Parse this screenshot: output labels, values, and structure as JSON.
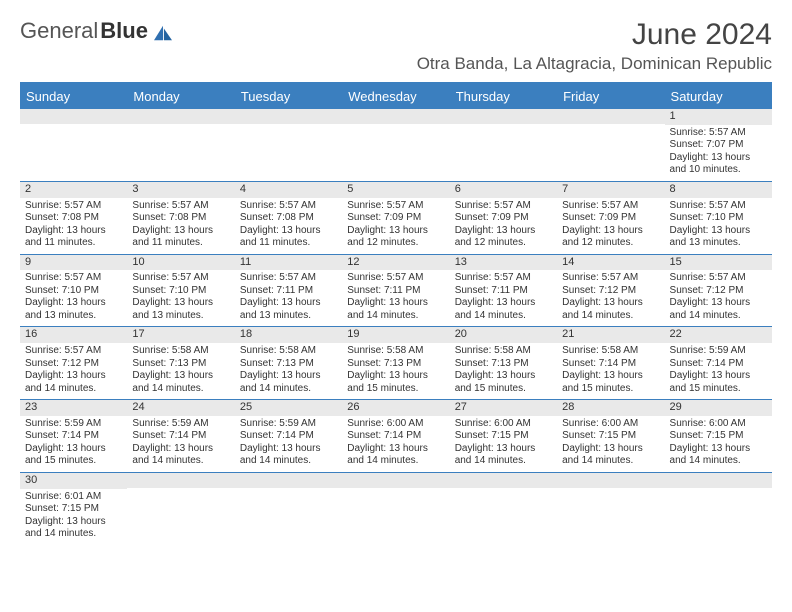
{
  "logo": {
    "part1": "General",
    "part2": "Blue"
  },
  "title": "June 2024",
  "location": "Otra Banda, La Altagracia, Dominican Republic",
  "colors": {
    "header_bg": "#3b7fbf",
    "header_text": "#ffffff",
    "daynum_bg": "#e9e9e9",
    "border": "#3b7fbf",
    "text": "#333333",
    "logo_blue": "#2f6fb0"
  },
  "day_names": [
    "Sunday",
    "Monday",
    "Tuesday",
    "Wednesday",
    "Thursday",
    "Friday",
    "Saturday"
  ],
  "weeks": [
    [
      {
        "empty": true
      },
      {
        "empty": true
      },
      {
        "empty": true
      },
      {
        "empty": true
      },
      {
        "empty": true
      },
      {
        "empty": true
      },
      {
        "n": "1",
        "sunrise": "Sunrise: 5:57 AM",
        "sunset": "Sunset: 7:07 PM",
        "daylight1": "Daylight: 13 hours",
        "daylight2": "and 10 minutes."
      }
    ],
    [
      {
        "n": "2",
        "sunrise": "Sunrise: 5:57 AM",
        "sunset": "Sunset: 7:08 PM",
        "daylight1": "Daylight: 13 hours",
        "daylight2": "and 11 minutes."
      },
      {
        "n": "3",
        "sunrise": "Sunrise: 5:57 AM",
        "sunset": "Sunset: 7:08 PM",
        "daylight1": "Daylight: 13 hours",
        "daylight2": "and 11 minutes."
      },
      {
        "n": "4",
        "sunrise": "Sunrise: 5:57 AM",
        "sunset": "Sunset: 7:08 PM",
        "daylight1": "Daylight: 13 hours",
        "daylight2": "and 11 minutes."
      },
      {
        "n": "5",
        "sunrise": "Sunrise: 5:57 AM",
        "sunset": "Sunset: 7:09 PM",
        "daylight1": "Daylight: 13 hours",
        "daylight2": "and 12 minutes."
      },
      {
        "n": "6",
        "sunrise": "Sunrise: 5:57 AM",
        "sunset": "Sunset: 7:09 PM",
        "daylight1": "Daylight: 13 hours",
        "daylight2": "and 12 minutes."
      },
      {
        "n": "7",
        "sunrise": "Sunrise: 5:57 AM",
        "sunset": "Sunset: 7:09 PM",
        "daylight1": "Daylight: 13 hours",
        "daylight2": "and 12 minutes."
      },
      {
        "n": "8",
        "sunrise": "Sunrise: 5:57 AM",
        "sunset": "Sunset: 7:10 PM",
        "daylight1": "Daylight: 13 hours",
        "daylight2": "and 13 minutes."
      }
    ],
    [
      {
        "n": "9",
        "sunrise": "Sunrise: 5:57 AM",
        "sunset": "Sunset: 7:10 PM",
        "daylight1": "Daylight: 13 hours",
        "daylight2": "and 13 minutes."
      },
      {
        "n": "10",
        "sunrise": "Sunrise: 5:57 AM",
        "sunset": "Sunset: 7:10 PM",
        "daylight1": "Daylight: 13 hours",
        "daylight2": "and 13 minutes."
      },
      {
        "n": "11",
        "sunrise": "Sunrise: 5:57 AM",
        "sunset": "Sunset: 7:11 PM",
        "daylight1": "Daylight: 13 hours",
        "daylight2": "and 13 minutes."
      },
      {
        "n": "12",
        "sunrise": "Sunrise: 5:57 AM",
        "sunset": "Sunset: 7:11 PM",
        "daylight1": "Daylight: 13 hours",
        "daylight2": "and 14 minutes."
      },
      {
        "n": "13",
        "sunrise": "Sunrise: 5:57 AM",
        "sunset": "Sunset: 7:11 PM",
        "daylight1": "Daylight: 13 hours",
        "daylight2": "and 14 minutes."
      },
      {
        "n": "14",
        "sunrise": "Sunrise: 5:57 AM",
        "sunset": "Sunset: 7:12 PM",
        "daylight1": "Daylight: 13 hours",
        "daylight2": "and 14 minutes."
      },
      {
        "n": "15",
        "sunrise": "Sunrise: 5:57 AM",
        "sunset": "Sunset: 7:12 PM",
        "daylight1": "Daylight: 13 hours",
        "daylight2": "and 14 minutes."
      }
    ],
    [
      {
        "n": "16",
        "sunrise": "Sunrise: 5:57 AM",
        "sunset": "Sunset: 7:12 PM",
        "daylight1": "Daylight: 13 hours",
        "daylight2": "and 14 minutes."
      },
      {
        "n": "17",
        "sunrise": "Sunrise: 5:58 AM",
        "sunset": "Sunset: 7:13 PM",
        "daylight1": "Daylight: 13 hours",
        "daylight2": "and 14 minutes."
      },
      {
        "n": "18",
        "sunrise": "Sunrise: 5:58 AM",
        "sunset": "Sunset: 7:13 PM",
        "daylight1": "Daylight: 13 hours",
        "daylight2": "and 14 minutes."
      },
      {
        "n": "19",
        "sunrise": "Sunrise: 5:58 AM",
        "sunset": "Sunset: 7:13 PM",
        "daylight1": "Daylight: 13 hours",
        "daylight2": "and 15 minutes."
      },
      {
        "n": "20",
        "sunrise": "Sunrise: 5:58 AM",
        "sunset": "Sunset: 7:13 PM",
        "daylight1": "Daylight: 13 hours",
        "daylight2": "and 15 minutes."
      },
      {
        "n": "21",
        "sunrise": "Sunrise: 5:58 AM",
        "sunset": "Sunset: 7:14 PM",
        "daylight1": "Daylight: 13 hours",
        "daylight2": "and 15 minutes."
      },
      {
        "n": "22",
        "sunrise": "Sunrise: 5:59 AM",
        "sunset": "Sunset: 7:14 PM",
        "daylight1": "Daylight: 13 hours",
        "daylight2": "and 15 minutes."
      }
    ],
    [
      {
        "n": "23",
        "sunrise": "Sunrise: 5:59 AM",
        "sunset": "Sunset: 7:14 PM",
        "daylight1": "Daylight: 13 hours",
        "daylight2": "and 15 minutes."
      },
      {
        "n": "24",
        "sunrise": "Sunrise: 5:59 AM",
        "sunset": "Sunset: 7:14 PM",
        "daylight1": "Daylight: 13 hours",
        "daylight2": "and 14 minutes."
      },
      {
        "n": "25",
        "sunrise": "Sunrise: 5:59 AM",
        "sunset": "Sunset: 7:14 PM",
        "daylight1": "Daylight: 13 hours",
        "daylight2": "and 14 minutes."
      },
      {
        "n": "26",
        "sunrise": "Sunrise: 6:00 AM",
        "sunset": "Sunset: 7:14 PM",
        "daylight1": "Daylight: 13 hours",
        "daylight2": "and 14 minutes."
      },
      {
        "n": "27",
        "sunrise": "Sunrise: 6:00 AM",
        "sunset": "Sunset: 7:15 PM",
        "daylight1": "Daylight: 13 hours",
        "daylight2": "and 14 minutes."
      },
      {
        "n": "28",
        "sunrise": "Sunrise: 6:00 AM",
        "sunset": "Sunset: 7:15 PM",
        "daylight1": "Daylight: 13 hours",
        "daylight2": "and 14 minutes."
      },
      {
        "n": "29",
        "sunrise": "Sunrise: 6:00 AM",
        "sunset": "Sunset: 7:15 PM",
        "daylight1": "Daylight: 13 hours",
        "daylight2": "and 14 minutes."
      }
    ],
    [
      {
        "n": "30",
        "sunrise": "Sunrise: 6:01 AM",
        "sunset": "Sunset: 7:15 PM",
        "daylight1": "Daylight: 13 hours",
        "daylight2": "and 14 minutes."
      },
      {
        "empty": true
      },
      {
        "empty": true
      },
      {
        "empty": true
      },
      {
        "empty": true
      },
      {
        "empty": true
      },
      {
        "empty": true
      }
    ]
  ]
}
